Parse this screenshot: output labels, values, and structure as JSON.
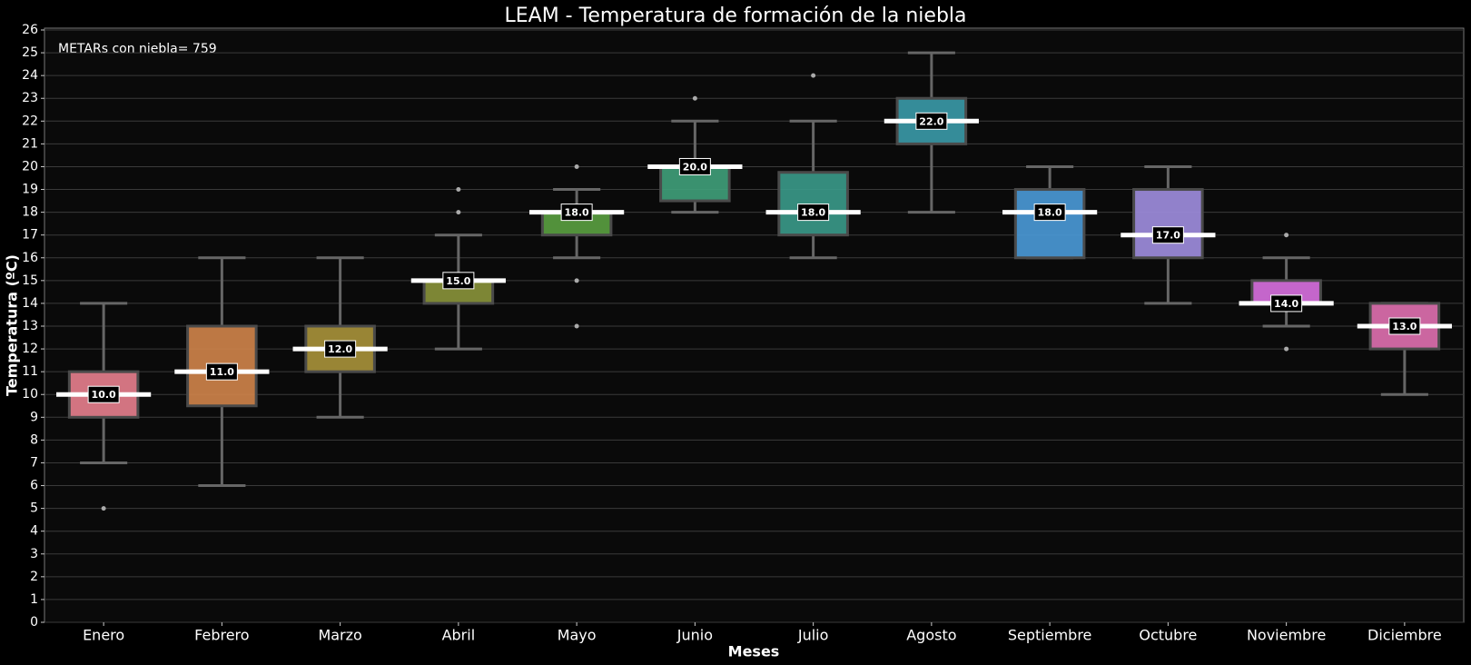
{
  "chart_data": {
    "type": "box",
    "title": "LEAM - Temperatura de formación de la niebla",
    "annotation": "METARs con niebla= 759",
    "x_label": "Meses",
    "y_label": "Temperatura (ºC)",
    "categories": [
      "Enero",
      "Febrero",
      "Marzo",
      "Abril",
      "Mayo",
      "Junio",
      "Julio",
      "Agosto",
      "Septiembre",
      "Octubre",
      "Noviembre",
      "Diciembre"
    ],
    "values": [
      10,
      11,
      12,
      15,
      18,
      20,
      18,
      22,
      18,
      17,
      14,
      13
    ],
    "value_labels": [
      "10.0",
      "11.0",
      "12.0",
      "15.0",
      "18.0",
      "20.0",
      "18.0",
      "22.0",
      "18.0",
      "17.0",
      "14.0",
      "13.0"
    ],
    "q1": [
      9,
      9.5,
      11,
      14,
      17,
      18.5,
      17,
      21,
      16,
      16,
      14,
      12
    ],
    "q3": [
      11,
      13,
      13,
      15,
      18,
      20,
      19.75,
      23,
      19,
      19,
      15,
      14
    ],
    "whislo": [
      7,
      6,
      9,
      12,
      16,
      18,
      16,
      18,
      16,
      14,
      13,
      10
    ],
    "whishi": [
      14,
      16,
      16,
      17,
      19,
      22,
      22,
      25,
      20,
      20,
      16,
      14
    ],
    "fliers": [
      [
        5
      ],
      [],
      [],
      [
        18,
        19
      ],
      [
        13,
        15,
        20
      ],
      [
        23
      ],
      [
        24
      ],
      [],
      [],
      [],
      [
        12,
        17
      ],
      []
    ],
    "colors": [
      "#e8808e",
      "#d0844a",
      "#a8923a",
      "#8a933a",
      "#5aa040",
      "#3fa07a",
      "#3a9a8a",
      "#3a9aa8",
      "#4a9ad8",
      "#a08ee0",
      "#d870e0",
      "#e070b0"
    ],
    "ylim": [
      0,
      26
    ],
    "yticks": [
      0,
      1,
      2,
      3,
      4,
      5,
      6,
      7,
      8,
      9,
      10,
      11,
      12,
      13,
      14,
      15,
      16,
      17,
      18,
      19,
      20,
      21,
      22,
      23,
      24,
      25,
      26
    ],
    "grid": true
  }
}
